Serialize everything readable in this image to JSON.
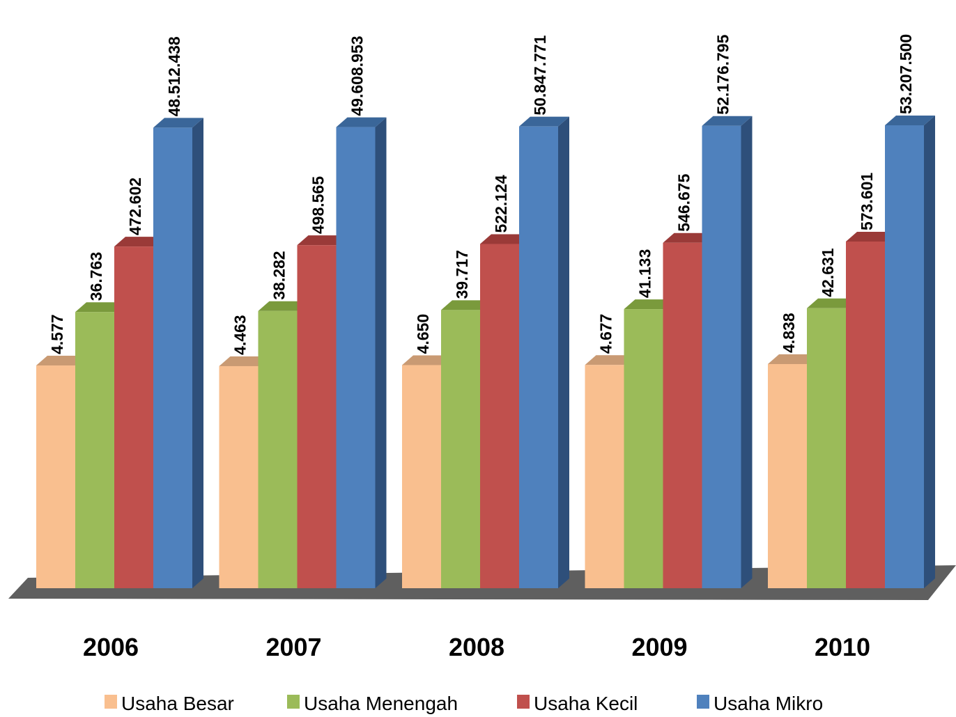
{
  "chart_data": {
    "type": "bar",
    "categories": [
      "2006",
      "2007",
      "2008",
      "2009",
      "2010"
    ],
    "series": [
      {
        "name": "Usaha Besar",
        "values": [
          4577,
          4463,
          4650,
          4677,
          4838
        ],
        "labels": [
          "4.577",
          "4.463",
          "4.650",
          "4.677",
          "4.838"
        ],
        "color": "#F9BF8F",
        "top_color": "#C99A73",
        "side_color": "#D9A67B"
      },
      {
        "name": "Usaha Menengah",
        "values": [
          36763,
          38282,
          39717,
          41133,
          42631
        ],
        "labels": [
          "36.763",
          "38.282",
          "39.717",
          "41.133",
          "42.631"
        ],
        "color": "#9BBB59",
        "top_color": "#7A9A3C",
        "side_color": "#7E9E45"
      },
      {
        "name": "Usaha Kecil",
        "values": [
          472602,
          498565,
          522124,
          546675,
          573601
        ],
        "labels": [
          "472.602",
          "498.565",
          "522.124",
          "546.675",
          "573.601"
        ],
        "color": "#C0504D",
        "top_color": "#9A3A38",
        "side_color": "#A03F3D"
      },
      {
        "name": "Usaha Mikro",
        "values": [
          48512438,
          49608953,
          50847771,
          52176795,
          53207500
        ],
        "labels": [
          "48.512.438",
          "49.608.953",
          "50.847.771",
          "52.176.795",
          "53.207.500"
        ],
        "color": "#4F81BD",
        "top_color": "#3A6699",
        "side_color": "#2E4F7A"
      }
    ],
    "legend_position": "bottom",
    "grid": false,
    "floor_color": "#5F5F5F"
  }
}
